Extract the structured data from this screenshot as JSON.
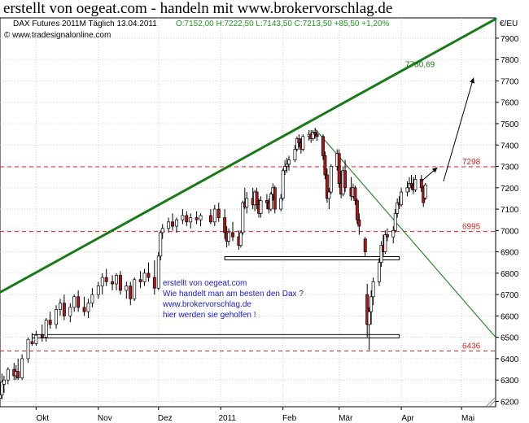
{
  "heading": "erstellt von oegeat.com - handeln mit www.brokervorschlag.de",
  "chart_data": {
    "type": "candlestick",
    "title": "DAX Futures 2011M Täglich  13.04.2011",
    "ohlc_label": "O:7152,00 H:7222,50 L:7143,50 C:7213,50 +85,50 +1,20%",
    "copyright": "© www.tradesignalonline.com",
    "currency_label": "€/EU",
    "ylim": [
      6175,
      7995
    ],
    "y_ticks": [
      6200,
      6300,
      6400,
      6500,
      6600,
      6700,
      6800,
      6900,
      7000,
      7100,
      7200,
      7300,
      7400,
      7500,
      7600,
      7700,
      7800,
      7900
    ],
    "y_tick_labels": [
      "6200",
      "6300",
      "6400",
      "6500",
      "6600",
      "6700",
      "6800",
      "6900",
      "7000",
      "7100",
      "7200",
      "7300",
      "7400",
      "7500",
      "7600",
      "7700",
      "7800",
      "7900"
    ],
    "x_labels": [
      "Okt",
      "Nov",
      "Dez",
      "2011",
      "Feb",
      "Mär",
      "Apr",
      "Mai"
    ],
    "x_label_dates": [
      "2010-10-01",
      "2010-11-01",
      "2010-12-01",
      "2011-01-01",
      "2011-02-01",
      "2011-03-01",
      "2011-04-01",
      "2011-05-01"
    ],
    "x_range": [
      "2010-09-13",
      "2011-05-18"
    ],
    "grid": true,
    "series": [
      {
        "date": "2010-09-13",
        "open": 6215,
        "high": 6300,
        "low": 6190,
        "close": 6230
      },
      {
        "date": "2010-09-14",
        "open": 6230,
        "high": 6330,
        "low": 6210,
        "close": 6290
      },
      {
        "date": "2010-09-15",
        "open": 6280,
        "high": 6320,
        "low": 6240,
        "close": 6300
      },
      {
        "date": "2010-09-17",
        "open": 6300,
        "high": 6360,
        "low": 6280,
        "close": 6350
      },
      {
        "date": "2010-09-20",
        "open": 6350,
        "high": 6380,
        "low": 6300,
        "close": 6320
      },
      {
        "date": "2010-09-21",
        "open": 6320,
        "high": 6370,
        "low": 6300,
        "close": 6340
      },
      {
        "date": "2010-09-22",
        "open": 6340,
        "high": 6400,
        "low": 6300,
        "close": 6310
      },
      {
        "date": "2010-09-24",
        "open": 6310,
        "high": 6420,
        "low": 6300,
        "close": 6400
      },
      {
        "date": "2010-09-27",
        "open": 6400,
        "high": 6500,
        "low": 6380,
        "close": 6490
      },
      {
        "date": "2010-09-29",
        "open": 6480,
        "high": 6520,
        "low": 6460,
        "close": 6470
      },
      {
        "date": "2010-10-01",
        "open": 6470,
        "high": 6530,
        "low": 6460,
        "close": 6510
      },
      {
        "date": "2010-10-04",
        "open": 6510,
        "high": 6560,
        "low": 6480,
        "close": 6500
      },
      {
        "date": "2010-10-06",
        "open": 6500,
        "high": 6590,
        "low": 6480,
        "close": 6580
      },
      {
        "date": "2010-10-08",
        "open": 6580,
        "high": 6620,
        "low": 6540,
        "close": 6560
      },
      {
        "date": "2010-10-11",
        "open": 6560,
        "high": 6650,
        "low": 6540,
        "close": 6630
      },
      {
        "date": "2010-10-13",
        "open": 6630,
        "high": 6680,
        "low": 6600,
        "close": 6660
      },
      {
        "date": "2010-10-15",
        "open": 6660,
        "high": 6700,
        "low": 6580,
        "close": 6600
      },
      {
        "date": "2010-10-18",
        "open": 6600,
        "high": 6660,
        "low": 6570,
        "close": 6640
      },
      {
        "date": "2010-10-20",
        "open": 6640,
        "high": 6700,
        "low": 6620,
        "close": 6690
      },
      {
        "date": "2010-10-22",
        "open": 6690,
        "high": 6720,
        "low": 6620,
        "close": 6640
      },
      {
        "date": "2010-10-25",
        "open": 6640,
        "high": 6690,
        "low": 6600,
        "close": 6620
      },
      {
        "date": "2010-10-27",
        "open": 6620,
        "high": 6680,
        "low": 6590,
        "close": 6660
      },
      {
        "date": "2010-10-29",
        "open": 6660,
        "high": 6730,
        "low": 6640,
        "close": 6700
      },
      {
        "date": "2010-11-01",
        "open": 6700,
        "high": 6760,
        "low": 6680,
        "close": 6740
      },
      {
        "date": "2010-11-03",
        "open": 6740,
        "high": 6800,
        "low": 6700,
        "close": 6780
      },
      {
        "date": "2010-11-05",
        "open": 6780,
        "high": 6820,
        "low": 6740,
        "close": 6760
      },
      {
        "date": "2010-11-08",
        "open": 6760,
        "high": 6790,
        "low": 6720,
        "close": 6750
      },
      {
        "date": "2010-11-10",
        "open": 6750,
        "high": 6800,
        "low": 6720,
        "close": 6790
      },
      {
        "date": "2010-11-12",
        "open": 6790,
        "high": 6810,
        "low": 6700,
        "close": 6720
      },
      {
        "date": "2010-11-15",
        "open": 6720,
        "high": 6760,
        "low": 6680,
        "close": 6740
      },
      {
        "date": "2010-11-17",
        "open": 6740,
        "high": 6760,
        "low": 6650,
        "close": 6680
      },
      {
        "date": "2010-11-19",
        "open": 6680,
        "high": 6780,
        "low": 6670,
        "close": 6770
      },
      {
        "date": "2010-11-22",
        "open": 6770,
        "high": 6810,
        "low": 6730,
        "close": 6760
      },
      {
        "date": "2010-11-24",
        "open": 6760,
        "high": 6820,
        "low": 6740,
        "close": 6800
      },
      {
        "date": "2010-11-26",
        "open": 6800,
        "high": 6850,
        "low": 6760,
        "close": 6780
      },
      {
        "date": "2010-11-29",
        "open": 6780,
        "high": 6860,
        "low": 6700,
        "close": 6730
      },
      {
        "date": "2010-12-01",
        "open": 6730,
        "high": 6900,
        "low": 6720,
        "close": 6880
      },
      {
        "date": "2010-12-02",
        "open": 6880,
        "high": 7000,
        "low": 6860,
        "close": 6990
      },
      {
        "date": "2010-12-03",
        "open": 6990,
        "high": 7030,
        "low": 6960,
        "close": 7010
      },
      {
        "date": "2010-12-06",
        "open": 7010,
        "high": 7060,
        "low": 6990,
        "close": 7040
      },
      {
        "date": "2010-12-08",
        "open": 7040,
        "high": 7080,
        "low": 7000,
        "close": 7020
      },
      {
        "date": "2010-12-10",
        "open": 7020,
        "high": 7060,
        "low": 6990,
        "close": 7050
      },
      {
        "date": "2010-12-13",
        "open": 7050,
        "high": 7100,
        "low": 7030,
        "close": 7070
      },
      {
        "date": "2010-12-15",
        "open": 7070,
        "high": 7090,
        "low": 7020,
        "close": 7040
      },
      {
        "date": "2010-12-17",
        "open": 7040,
        "high": 7080,
        "low": 7010,
        "close": 7060
      },
      {
        "date": "2010-12-20",
        "open": 7060,
        "high": 7090,
        "low": 7030,
        "close": 7050
      },
      {
        "date": "2010-12-22",
        "open": 7050,
        "high": 7080,
        "low": 7020,
        "close": 7070
      },
      {
        "date": "2010-12-27",
        "open": 7070,
        "high": 7100,
        "low": 7030,
        "close": 7040
      },
      {
        "date": "2010-12-29",
        "open": 7040,
        "high": 7120,
        "low": 7020,
        "close": 7100
      },
      {
        "date": "2010-12-31",
        "open": 7100,
        "high": 7130,
        "low": 7040,
        "close": 7060
      },
      {
        "date": "2011-01-03",
        "open": 7060,
        "high": 7100,
        "low": 6960,
        "close": 6990
      },
      {
        "date": "2011-01-04",
        "open": 6990,
        "high": 7020,
        "low": 6920,
        "close": 6950
      },
      {
        "date": "2011-01-05",
        "open": 6950,
        "high": 7010,
        "low": 6930,
        "close": 6990
      },
      {
        "date": "2011-01-07",
        "open": 6990,
        "high": 7040,
        "low": 6950,
        "close": 6970
      },
      {
        "date": "2011-01-10",
        "open": 6970,
        "high": 7000,
        "low": 6910,
        "close": 6930
      },
      {
        "date": "2011-01-11",
        "open": 6930,
        "high": 7000,
        "low": 6920,
        "close": 6990
      },
      {
        "date": "2011-01-12",
        "open": 6990,
        "high": 7140,
        "low": 6980,
        "close": 7130
      },
      {
        "date": "2011-01-13",
        "open": 7130,
        "high": 7200,
        "low": 7100,
        "close": 7110
      },
      {
        "date": "2011-01-14",
        "open": 7110,
        "high": 7180,
        "low": 7080,
        "close": 7150
      },
      {
        "date": "2011-01-17",
        "open": 7150,
        "high": 7200,
        "low": 7100,
        "close": 7120
      },
      {
        "date": "2011-01-18",
        "open": 7120,
        "high": 7190,
        "low": 7090,
        "close": 7180
      },
      {
        "date": "2011-01-19",
        "open": 7180,
        "high": 7200,
        "low": 7100,
        "close": 7120
      },
      {
        "date": "2011-01-20",
        "open": 7120,
        "high": 7150,
        "low": 7060,
        "close": 7080
      },
      {
        "date": "2011-01-21",
        "open": 7080,
        "high": 7160,
        "low": 7060,
        "close": 7140
      },
      {
        "date": "2011-01-24",
        "open": 7140,
        "high": 7170,
        "low": 7100,
        "close": 7130
      },
      {
        "date": "2011-01-25",
        "open": 7130,
        "high": 7150,
        "low": 7080,
        "close": 7100
      },
      {
        "date": "2011-01-26",
        "open": 7100,
        "high": 7180,
        "low": 7090,
        "close": 7170
      },
      {
        "date": "2011-01-27",
        "open": 7170,
        "high": 7220,
        "low": 7140,
        "close": 7200
      },
      {
        "date": "2011-01-28",
        "open": 7200,
        "high": 7210,
        "low": 7080,
        "close": 7100
      },
      {
        "date": "2011-01-31",
        "open": 7100,
        "high": 7170,
        "low": 7090,
        "close": 7150
      },
      {
        "date": "2011-02-01",
        "open": 7150,
        "high": 7290,
        "low": 7140,
        "close": 7280
      },
      {
        "date": "2011-02-02",
        "open": 7280,
        "high": 7330,
        "low": 7260,
        "close": 7300
      },
      {
        "date": "2011-02-03",
        "open": 7300,
        "high": 7340,
        "low": 7270,
        "close": 7310
      },
      {
        "date": "2011-02-04",
        "open": 7310,
        "high": 7350,
        "low": 7280,
        "close": 7330
      },
      {
        "date": "2011-02-07",
        "open": 7330,
        "high": 7400,
        "low": 7320,
        "close": 7380
      },
      {
        "date": "2011-02-08",
        "open": 7380,
        "high": 7440,
        "low": 7370,
        "close": 7430
      },
      {
        "date": "2011-02-09",
        "open": 7430,
        "high": 7450,
        "low": 7390,
        "close": 7410
      },
      {
        "date": "2011-02-10",
        "open": 7410,
        "high": 7430,
        "low": 7360,
        "close": 7380
      },
      {
        "date": "2011-02-11",
        "open": 7380,
        "high": 7450,
        "low": 7370,
        "close": 7440
      },
      {
        "date": "2011-02-14",
        "open": 7440,
        "high": 7470,
        "low": 7420,
        "close": 7450
      },
      {
        "date": "2011-02-15",
        "open": 7450,
        "high": 7470,
        "low": 7410,
        "close": 7430
      },
      {
        "date": "2011-02-16",
        "open": 7430,
        "high": 7470,
        "low": 7420,
        "close": 7460
      },
      {
        "date": "2011-02-17",
        "open": 7460,
        "high": 7480,
        "low": 7430,
        "close": 7450
      },
      {
        "date": "2011-02-18",
        "open": 7450,
        "high": 7470,
        "low": 7420,
        "close": 7440
      },
      {
        "date": "2011-02-21",
        "open": 7440,
        "high": 7450,
        "low": 7330,
        "close": 7350
      },
      {
        "date": "2011-02-22",
        "open": 7350,
        "high": 7370,
        "low": 7240,
        "close": 7260
      },
      {
        "date": "2011-02-23",
        "open": 7260,
        "high": 7290,
        "low": 7130,
        "close": 7150
      },
      {
        "date": "2011-02-24",
        "open": 7150,
        "high": 7200,
        "low": 7100,
        "close": 7180
      },
      {
        "date": "2011-02-25",
        "open": 7180,
        "high": 7310,
        "low": 7170,
        "close": 7300
      },
      {
        "date": "2011-02-28",
        "open": 7300,
        "high": 7380,
        "low": 7280,
        "close": 7360
      },
      {
        "date": "2011-03-01",
        "open": 7360,
        "high": 7380,
        "low": 7200,
        "close": 7220
      },
      {
        "date": "2011-03-02",
        "open": 7220,
        "high": 7280,
        "low": 7150,
        "close": 7170
      },
      {
        "date": "2011-03-03",
        "open": 7170,
        "high": 7300,
        "low": 7160,
        "close": 7280
      },
      {
        "date": "2011-03-04",
        "open": 7280,
        "high": 7330,
        "low": 7180,
        "close": 7200
      },
      {
        "date": "2011-03-07",
        "open": 7200,
        "high": 7250,
        "low": 7140,
        "close": 7160
      },
      {
        "date": "2011-03-08",
        "open": 7160,
        "high": 7220,
        "low": 7150,
        "close": 7200
      },
      {
        "date": "2011-03-09",
        "open": 7200,
        "high": 7210,
        "low": 7120,
        "close": 7140
      },
      {
        "date": "2011-03-10",
        "open": 7140,
        "high": 7150,
        "low": 7030,
        "close": 7050
      },
      {
        "date": "2011-03-11",
        "open": 7050,
        "high": 7080,
        "low": 6980,
        "close": 7020
      },
      {
        "date": "2011-03-14",
        "open": 6960,
        "high": 6970,
        "low": 6880,
        "close": 6900
      },
      {
        "date": "2011-03-15",
        "open": 6700,
        "high": 6750,
        "low": 6500,
        "close": 6560
      },
      {
        "date": "2011-03-16",
        "open": 6560,
        "high": 6640,
        "low": 6440,
        "close": 6620
      },
      {
        "date": "2011-03-17",
        "open": 6620,
        "high": 6720,
        "low": 6560,
        "close": 6690
      },
      {
        "date": "2011-03-18",
        "open": 6690,
        "high": 6780,
        "low": 6650,
        "close": 6760
      },
      {
        "date": "2011-03-21",
        "open": 6760,
        "high": 6870,
        "low": 6740,
        "close": 6850
      },
      {
        "date": "2011-03-22",
        "open": 6850,
        "high": 6950,
        "low": 6830,
        "close": 6930
      },
      {
        "date": "2011-03-23",
        "open": 6930,
        "high": 6980,
        "low": 6880,
        "close": 6900
      },
      {
        "date": "2011-03-24",
        "open": 6900,
        "high": 7000,
        "low": 6890,
        "close": 6980
      },
      {
        "date": "2011-03-25",
        "open": 6980,
        "high": 7010,
        "low": 6950,
        "close": 6970
      },
      {
        "date": "2011-03-28",
        "open": 6970,
        "high": 7020,
        "low": 6940,
        "close": 7000
      },
      {
        "date": "2011-03-29",
        "open": 7000,
        "high": 7100,
        "low": 6990,
        "close": 7080
      },
      {
        "date": "2011-03-30",
        "open": 7080,
        "high": 7150,
        "low": 7060,
        "close": 7130
      },
      {
        "date": "2011-03-31",
        "open": 7130,
        "high": 7160,
        "low": 7100,
        "close": 7120
      },
      {
        "date": "2011-04-01",
        "open": 7120,
        "high": 7200,
        "low": 7110,
        "close": 7180
      },
      {
        "date": "2011-04-04",
        "open": 7180,
        "high": 7230,
        "low": 7160,
        "close": 7200
      },
      {
        "date": "2011-04-05",
        "open": 7200,
        "high": 7250,
        "low": 7180,
        "close": 7220
      },
      {
        "date": "2011-04-06",
        "open": 7220,
        "high": 7260,
        "low": 7190,
        "close": 7210
      },
      {
        "date": "2011-04-07",
        "open": 7210,
        "high": 7250,
        "low": 7170,
        "close": 7190
      },
      {
        "date": "2011-04-08",
        "open": 7190,
        "high": 7260,
        "low": 7180,
        "close": 7240
      },
      {
        "date": "2011-04-11",
        "open": 7240,
        "high": 7260,
        "low": 7180,
        "close": 7200
      },
      {
        "date": "2011-04-12",
        "open": 7200,
        "high": 7210,
        "low": 7110,
        "close": 7130
      },
      {
        "date": "2011-04-13",
        "open": 7152,
        "high": 7222.5,
        "low": 7143.5,
        "close": 7213.5
      }
    ],
    "horizontal_levels": [
      {
        "value": 7298,
        "label": "7298"
      },
      {
        "value": 6995,
        "label": "6995"
      },
      {
        "value": 6436,
        "label": "6436"
      }
    ],
    "trendlines": [
      {
        "name": "upper-trendline",
        "color": "#1a7a1a",
        "points": [
          [
            "2010-09-13",
            6710
          ],
          [
            "2011-05-18",
            7990
          ]
        ],
        "label": "7780,69",
        "label_date": "2011-04-03",
        "label_value": 7780.69
      },
      {
        "name": "downtrend-line",
        "color": "#2e8b2e",
        "points": [
          [
            "2011-02-17",
            7475
          ],
          [
            "2011-05-18",
            6500
          ]
        ]
      }
    ],
    "support_boxes": [
      {
        "name": "support-box-upper",
        "start": "2011-01-03",
        "end": "2011-03-31",
        "value": 6870
      },
      {
        "name": "support-box-lower",
        "start": "2010-09-29",
        "end": "2011-03-31",
        "value": 6505
      }
    ],
    "arrows": [
      {
        "name": "projection-arrow-short",
        "from": [
          "2011-04-11",
          7230
        ],
        "to": [
          "2011-04-19",
          7295
        ]
      },
      {
        "name": "projection-arrow-long",
        "from": [
          "2011-04-22",
          7230
        ],
        "to": [
          "2011-05-07",
          7715
        ]
      }
    ],
    "annotation_lines": [
      "erstellt von oegeat.com",
      "Wie handelt man am besten den Dax ?",
      "www.brokervorschlag.de",
      "hier werden sie geholfen !"
    ],
    "colors": {
      "up": "#ffffff",
      "down": "#b01818",
      "outline": "#000000",
      "levels": "#dd2222",
      "annotation": "#1a1acc"
    }
  }
}
